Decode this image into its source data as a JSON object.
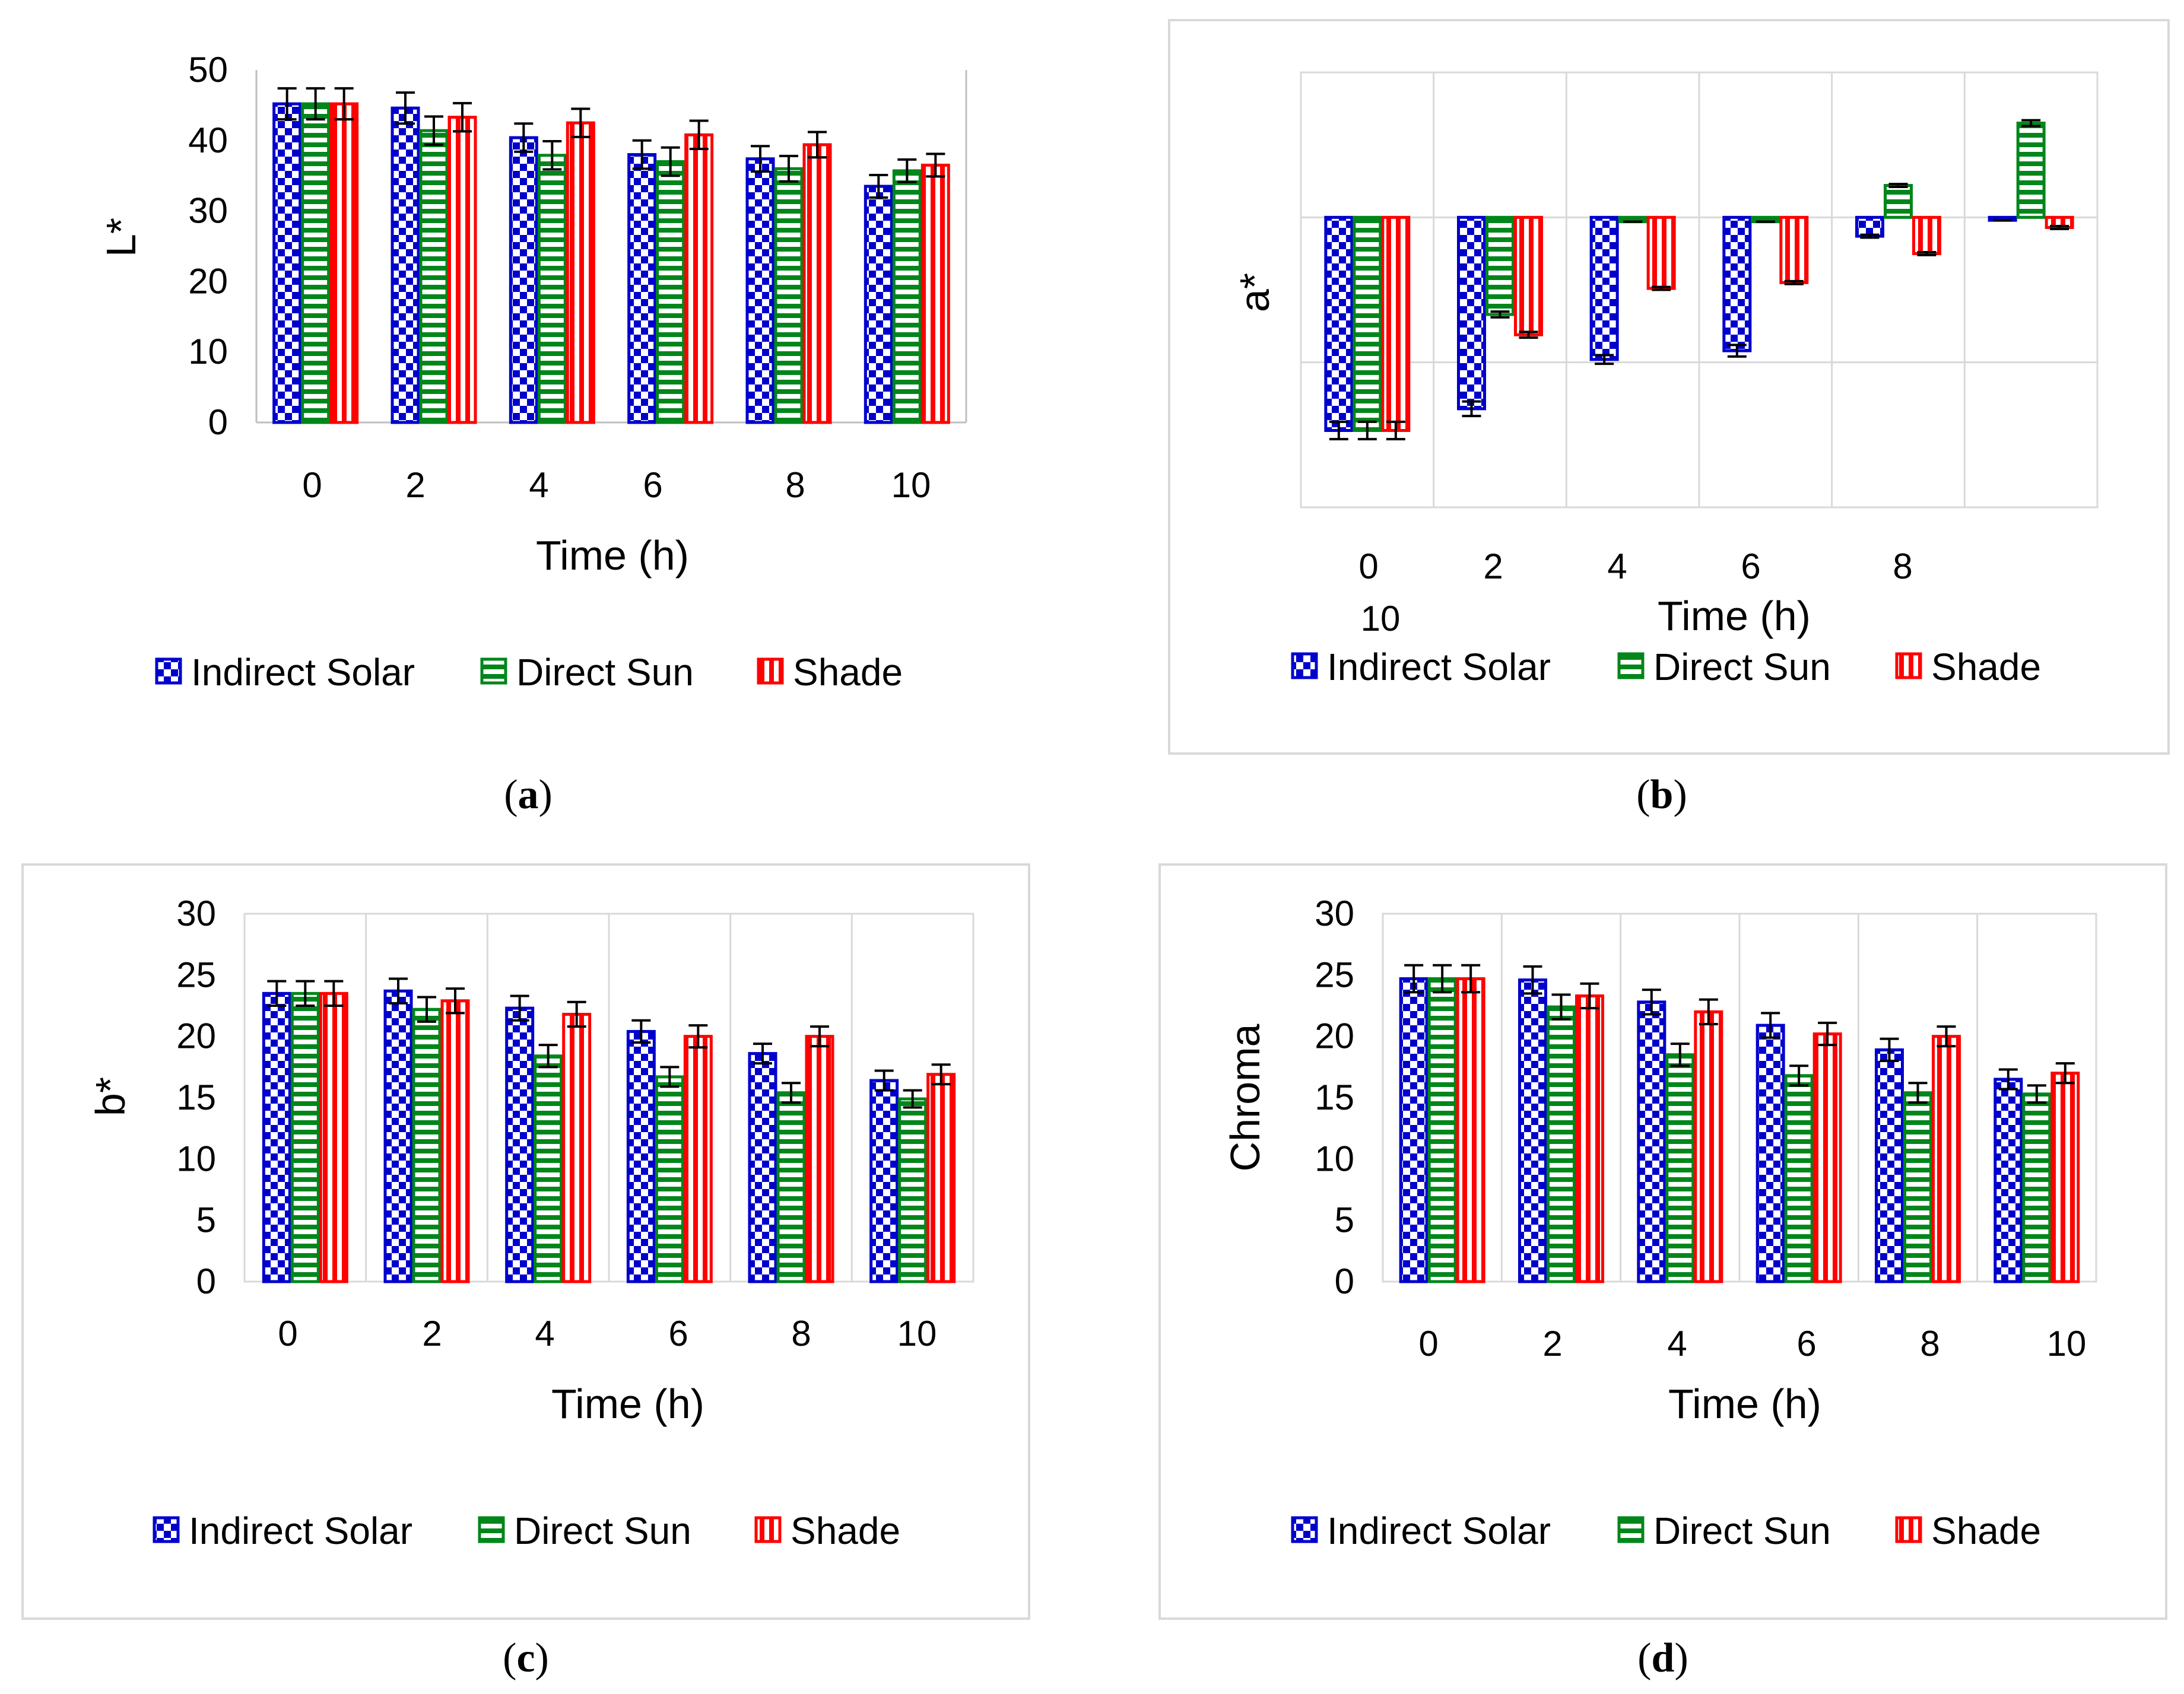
{
  "legend_labels": [
    "Indirect Solar",
    "Direct Sun",
    "Shade"
  ],
  "series_colors": {
    "indirect": "#0000cc",
    "direct": "#00861a",
    "shade": "#ff0000",
    "error": "#000000"
  },
  "captions": {
    "a": "a",
    "b": "b",
    "c": "c",
    "d": "d"
  },
  "chart_data": [
    {
      "id": "a",
      "type": "bar",
      "title": "",
      "xlabel": "Time (h)",
      "ylabel": "L*",
      "categories": [
        "0",
        "2",
        "4",
        "6",
        "8",
        "10"
      ],
      "ylim": [
        0,
        50
      ],
      "yticks": [
        "0",
        "10",
        "20",
        "30",
        "40",
        "50"
      ],
      "series": [
        {
          "name": "Indirect Solar",
          "values": [
            45.2,
            44.6,
            40.4,
            38.0,
            37.4,
            33.5
          ],
          "errors": [
            2.2,
            2.2,
            2.0,
            2.0,
            1.8,
            1.6
          ]
        },
        {
          "name": "Direct Sun",
          "values": [
            45.2,
            41.4,
            37.9,
            37.0,
            36.0,
            35.7
          ],
          "errors": [
            2.2,
            2.0,
            2.0,
            2.0,
            1.8,
            1.6
          ]
        },
        {
          "name": "Shade",
          "values": [
            45.2,
            43.3,
            42.5,
            40.8,
            39.4,
            36.5
          ],
          "errors": [
            2.2,
            2.0,
            2.0,
            2.0,
            1.8,
            1.6
          ]
        }
      ]
    },
    {
      "id": "b",
      "type": "bar",
      "title": "",
      "xlabel": "Time (h)",
      "ylabel": "a*",
      "categories": [
        "0",
        "2",
        "4",
        "6",
        "8",
        "10"
      ],
      "ylim": [
        -2.0,
        1.0
      ],
      "yticks": [],
      "series": [
        {
          "name": "Indirect Solar",
          "values": [
            -1.47,
            -1.32,
            -0.98,
            -0.92,
            -0.13,
            -0.02
          ],
          "errors": [
            0.06,
            0.05,
            0.03,
            0.04,
            0.01,
            0.0
          ]
        },
        {
          "name": "Direct Sun",
          "values": [
            -1.47,
            -0.67,
            -0.03,
            -0.03,
            0.22,
            0.65
          ],
          "errors": [
            0.06,
            0.02,
            0.0,
            0.0,
            0.01,
            0.02
          ]
        },
        {
          "name": "Shade",
          "values": [
            -1.47,
            -0.81,
            -0.49,
            -0.45,
            -0.25,
            -0.07
          ],
          "errors": [
            0.06,
            0.02,
            0.01,
            0.01,
            0.01,
            0.01
          ]
        }
      ]
    },
    {
      "id": "c",
      "type": "bar",
      "title": "",
      "xlabel": "Time (h)",
      "ylabel": "b*",
      "categories": [
        "0",
        "2",
        "4",
        "6",
        "8",
        "10"
      ],
      "ylim": [
        0,
        30
      ],
      "yticks": [
        "0",
        "5",
        "10",
        "15",
        "20",
        "25",
        "30"
      ],
      "series": [
        {
          "name": "Indirect Solar",
          "values": [
            23.5,
            23.7,
            22.3,
            20.4,
            18.6,
            16.4
          ],
          "errors": [
            1.0,
            1.0,
            1.0,
            0.9,
            0.8,
            0.8
          ]
        },
        {
          "name": "Direct Sun",
          "values": [
            23.5,
            22.2,
            18.4,
            16.7,
            15.4,
            14.9
          ],
          "errors": [
            1.0,
            1.0,
            0.9,
            0.8,
            0.8,
            0.7
          ]
        },
        {
          "name": "Shade",
          "values": [
            23.5,
            22.9,
            21.8,
            20.0,
            20.0,
            16.9
          ],
          "errors": [
            1.0,
            1.0,
            1.0,
            0.9,
            0.8,
            0.8
          ]
        }
      ]
    },
    {
      "id": "d",
      "type": "bar",
      "title": "",
      "xlabel": "Time (h)",
      "ylabel": "Chroma",
      "categories": [
        "0",
        "2",
        "4",
        "6",
        "8",
        "10"
      ],
      "ylim": [
        0,
        30
      ],
      "yticks": [
        "0",
        "5",
        "10",
        "15",
        "20",
        "25",
        "30"
      ],
      "series": [
        {
          "name": "Indirect Solar",
          "values": [
            24.7,
            24.6,
            22.8,
            20.9,
            18.9,
            16.5
          ],
          "errors": [
            1.1,
            1.1,
            1.0,
            1.0,
            0.9,
            0.8
          ]
        },
        {
          "name": "Direct Sun",
          "values": [
            24.7,
            22.4,
            18.5,
            16.8,
            15.4,
            15.3
          ],
          "errors": [
            1.1,
            1.0,
            0.9,
            0.8,
            0.8,
            0.7
          ]
        },
        {
          "name": "Shade",
          "values": [
            24.7,
            23.3,
            22.0,
            20.2,
            20.0,
            17.0
          ],
          "errors": [
            1.1,
            1.0,
            1.0,
            0.9,
            0.8,
            0.8
          ]
        }
      ]
    }
  ]
}
